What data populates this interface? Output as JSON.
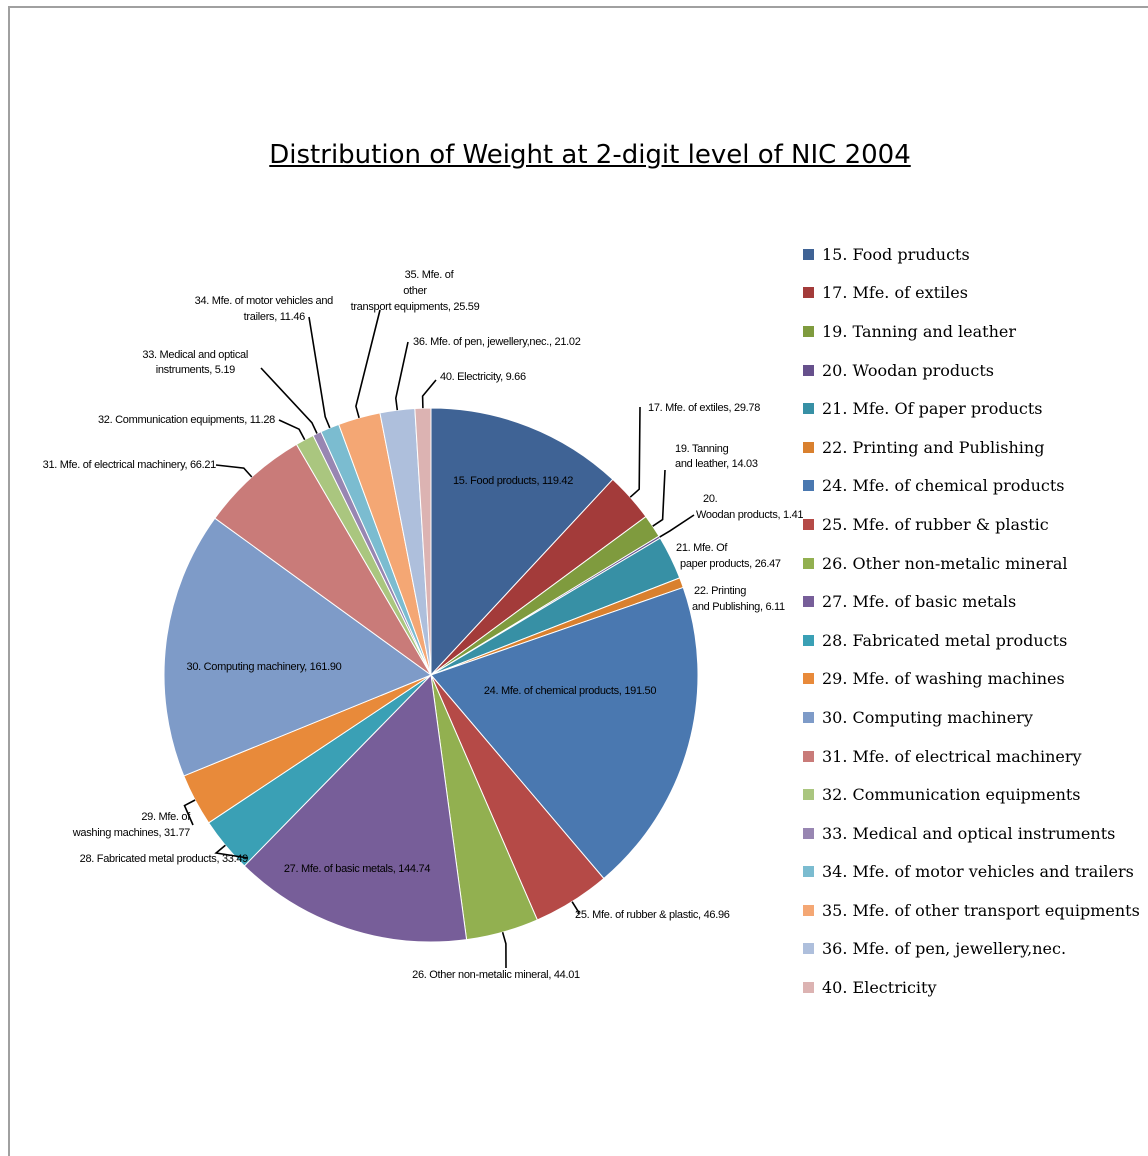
{
  "chart_data": {
    "type": "pie",
    "title": "Distribution of Weight at 2-digit level of NIC 2004",
    "legend_position": "right",
    "slices": [
      {
        "legend": "15. Food pruducts",
        "label": "15. Food products, 119.42",
        "value": 119.42,
        "color": "#3f6395"
      },
      {
        "legend": "17. Mfe. of extiles",
        "label": "17. Mfe. of extiles, 29.78",
        "value": 29.78,
        "color": "#a33b3a"
      },
      {
        "legend": "19. Tanning and leather",
        "label": "19. Tanning and leather, 14.03",
        "value": 14.03,
        "color": "#7f9b3e"
      },
      {
        "legend": "20. Woodan products",
        "label": "20. Woodan products, 1.41",
        "value": 1.41,
        "color": "#66508c"
      },
      {
        "legend": "21. Mfe. Of paper products",
        "label": "21. Mfe. Of paper products, 26.47",
        "value": 26.47,
        "color": "#3790a5"
      },
      {
        "legend": "22. Printing and Publishing",
        "label": "22. Printing and Publishing, 6.11",
        "value": 6.11,
        "color": "#d9802e"
      },
      {
        "legend": "24. Mfe. of chemical products",
        "label": "24. Mfe. of chemical products, 191.50",
        "value": 191.5,
        "color": "#4a78b0"
      },
      {
        "legend": "25. Mfe. of rubber & plastic",
        "label": "25. Mfe. of rubber & plastic, 46.96",
        "value": 46.96,
        "color": "#b54a47"
      },
      {
        "legend": "26. Other non-metalic mineral",
        "label": "26. Other non-metalic mineral, 44.01",
        "value": 44.01,
        "color": "#92b050"
      },
      {
        "legend": "27. Mfe. of basic metals",
        "label": "27. Mfe. of basic metals, 144.74",
        "value": 144.74,
        "color": "#775e99"
      },
      {
        "legend": "28. Fabricated metal products",
        "label": "28. Fabricated metal products, 33.49",
        "value": 33.49,
        "color": "#3aa0b5"
      },
      {
        "legend": "29. Mfe. of washing machines",
        "label": "29. Mfe. of washing machines, 31.77",
        "value": 31.77,
        "color": "#e88a3a"
      },
      {
        "legend": "30. Computing machinery",
        "label": "30. Computing machinery, 161.90",
        "value": 161.9,
        "color": "#7e9bc8"
      },
      {
        "legend": "31. Mfe. of electrical machinery",
        "label": "31. Mfe. of electrical machinery, 66.21",
        "value": 66.21,
        "color": "#c97b79"
      },
      {
        "legend": "32. Communication equipments",
        "label": "32. Communication equipments, 11.28",
        "value": 11.28,
        "color": "#aac67f"
      },
      {
        "legend": "33. Medical and optical instruments",
        "label": "33. Medical and optical instruments, 5.19",
        "value": 5.19,
        "color": "#9886b2"
      },
      {
        "legend": "34. Mfe. of motor vehicles and trailers",
        "label": "34. Mfe. of motor vehicles and trailers, 11.46",
        "value": 11.46,
        "color": "#7bbcd0"
      },
      {
        "legend": "35. Mfe. of other transport equipments",
        "label": "35. Mfe. of other transport equipments, 25.59",
        "value": 25.59,
        "color": "#f4a774"
      },
      {
        "legend": "36. Mfe. of pen, jewellery,nec.",
        "label": "36. Mfe. of pen, jewellery,nec., 21.02",
        "value": 21.02,
        "color": "#aebfdc"
      },
      {
        "legend": "40. Electricity",
        "label": "40. Electricity, 9.66",
        "value": 9.66,
        "color": "#dcb3b2"
      }
    ]
  }
}
